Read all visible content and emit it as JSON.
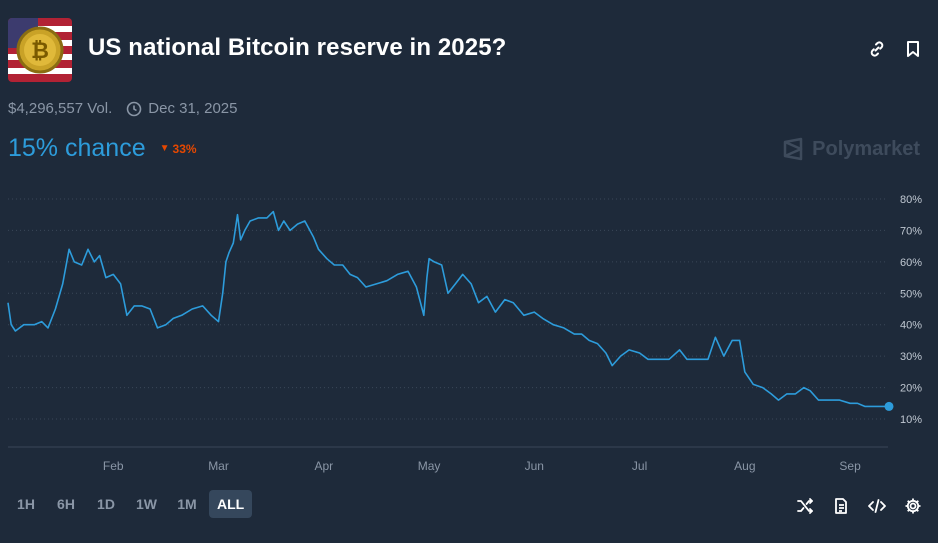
{
  "market": {
    "title": "US national Bitcoin reserve in 2025?",
    "volume": "$4,296,557 Vol.",
    "end_date": "Dec 31, 2025",
    "chance": "15% chance",
    "delta": "33%",
    "delta_direction": "down",
    "brand": "Polymarket",
    "thumbnail_icon": "bitcoin-flag-image"
  },
  "colors": {
    "background": "#1e2a3a",
    "line": "#2d9cdb",
    "delta_down": "#e64800",
    "grid": "#3a4758",
    "muted": "#8a96a6"
  },
  "time_ranges": [
    {
      "label": "1H",
      "active": false
    },
    {
      "label": "6H",
      "active": false
    },
    {
      "label": "1D",
      "active": false
    },
    {
      "label": "1W",
      "active": false
    },
    {
      "label": "1M",
      "active": false
    },
    {
      "label": "ALL",
      "active": true
    }
  ],
  "top_icons": [
    "link-icon",
    "bookmark-icon"
  ],
  "tool_icons": [
    "shuffle-icon",
    "document-icon",
    "embed-code-icon",
    "settings-gear-icon"
  ],
  "chart_data": {
    "type": "line",
    "x_tick_labels": [
      "Feb",
      "Mar",
      "Apr",
      "May",
      "Jun",
      "Jul",
      "Aug",
      "Sep"
    ],
    "y_tick_labels": [
      "10%",
      "20%",
      "30%",
      "40%",
      "50%",
      "60%",
      "70%",
      "80%"
    ],
    "ylim": [
      10,
      80
    ],
    "grid": "horizontal dotted",
    "x_unit": "month (1 = Jan 1, 2025)",
    "series": [
      {
        "values": [
          [
            1.0,
            47
          ],
          [
            1.03,
            40
          ],
          [
            1.07,
            38
          ],
          [
            1.15,
            40
          ],
          [
            1.25,
            40
          ],
          [
            1.32,
            41
          ],
          [
            1.38,
            39
          ],
          [
            1.45,
            45
          ],
          [
            1.52,
            53
          ],
          [
            1.58,
            64
          ],
          [
            1.63,
            60
          ],
          [
            1.7,
            59
          ],
          [
            1.76,
            64
          ],
          [
            1.82,
            60
          ],
          [
            1.87,
            62
          ],
          [
            1.93,
            55
          ],
          [
            2.0,
            56
          ],
          [
            2.07,
            53
          ],
          [
            2.13,
            43
          ],
          [
            2.2,
            46
          ],
          [
            2.27,
            46
          ],
          [
            2.35,
            45
          ],
          [
            2.42,
            39
          ],
          [
            2.5,
            40
          ],
          [
            2.57,
            42
          ],
          [
            2.65,
            43
          ],
          [
            2.75,
            45
          ],
          [
            2.85,
            46
          ],
          [
            2.93,
            43
          ],
          [
            3.0,
            41
          ],
          [
            3.04,
            50
          ],
          [
            3.07,
            60
          ],
          [
            3.1,
            63
          ],
          [
            3.14,
            66
          ],
          [
            3.18,
            75
          ],
          [
            3.21,
            67
          ],
          [
            3.25,
            70
          ],
          [
            3.3,
            73
          ],
          [
            3.38,
            74
          ],
          [
            3.46,
            74
          ],
          [
            3.52,
            76
          ],
          [
            3.57,
            70
          ],
          [
            3.62,
            73
          ],
          [
            3.68,
            70
          ],
          [
            3.75,
            72
          ],
          [
            3.82,
            73
          ],
          [
            3.9,
            68
          ],
          [
            3.95,
            64
          ],
          [
            4.03,
            61
          ],
          [
            4.1,
            59
          ],
          [
            4.18,
            59
          ],
          [
            4.25,
            56
          ],
          [
            4.32,
            55
          ],
          [
            4.4,
            52
          ],
          [
            4.5,
            53
          ],
          [
            4.6,
            54
          ],
          [
            4.7,
            56
          ],
          [
            4.8,
            57
          ],
          [
            4.88,
            52
          ],
          [
            4.95,
            43
          ],
          [
            4.98,
            55
          ],
          [
            5.0,
            61
          ],
          [
            5.05,
            60
          ],
          [
            5.12,
            59
          ],
          [
            5.18,
            50
          ],
          [
            5.25,
            53
          ],
          [
            5.32,
            56
          ],
          [
            5.4,
            53
          ],
          [
            5.47,
            47
          ],
          [
            5.55,
            49
          ],
          [
            5.63,
            44
          ],
          [
            5.72,
            48
          ],
          [
            5.8,
            47
          ],
          [
            5.9,
            43
          ],
          [
            6.0,
            44
          ],
          [
            6.08,
            42
          ],
          [
            6.18,
            40
          ],
          [
            6.28,
            39
          ],
          [
            6.38,
            37
          ],
          [
            6.45,
            37
          ],
          [
            6.52,
            35
          ],
          [
            6.6,
            34
          ],
          [
            6.68,
            31
          ],
          [
            6.74,
            27
          ],
          [
            6.82,
            30
          ],
          [
            6.9,
            32
          ],
          [
            7.0,
            31
          ],
          [
            7.08,
            29
          ],
          [
            7.18,
            29
          ],
          [
            7.28,
            29
          ],
          [
            7.38,
            32
          ],
          [
            7.45,
            29
          ],
          [
            7.55,
            29
          ],
          [
            7.65,
            29
          ],
          [
            7.72,
            36
          ],
          [
            7.8,
            30
          ],
          [
            7.88,
            35
          ],
          [
            7.95,
            35
          ],
          [
            8.0,
            25
          ],
          [
            8.08,
            21
          ],
          [
            8.17,
            20
          ],
          [
            8.25,
            18
          ],
          [
            8.32,
            16
          ],
          [
            8.4,
            18
          ],
          [
            8.48,
            18
          ],
          [
            8.56,
            20
          ],
          [
            8.62,
            19
          ],
          [
            8.7,
            16
          ],
          [
            8.8,
            16
          ],
          [
            8.9,
            16
          ],
          [
            9.0,
            15
          ],
          [
            9.07,
            15
          ],
          [
            9.14,
            14
          ],
          [
            9.2,
            14
          ],
          [
            9.26,
            14
          ],
          [
            9.36,
            14
          ]
        ]
      }
    ]
  }
}
